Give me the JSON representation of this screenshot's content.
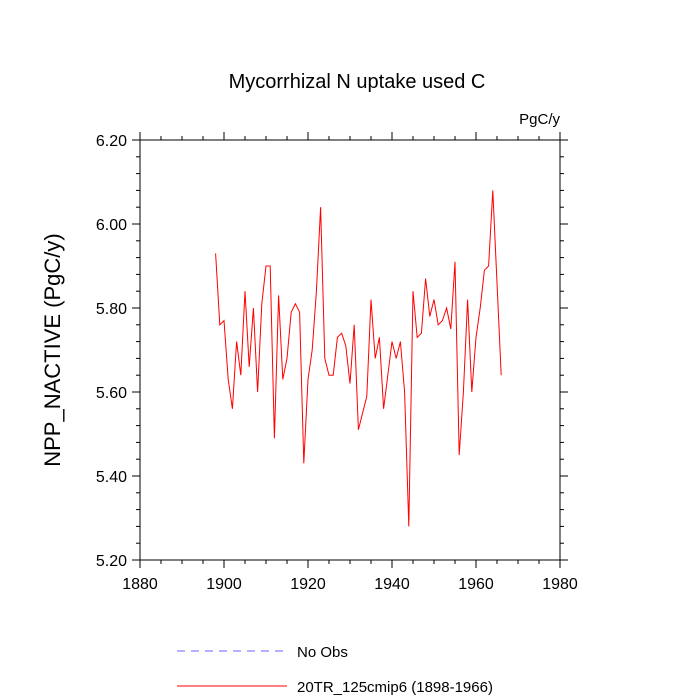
{
  "chart_data": {
    "type": "line",
    "title": "Mycorrhizal N uptake used C",
    "units": "PgC/y",
    "xlabel": "",
    "ylabel": "NPP_NACTIVE  (PgC/y)",
    "xlim": [
      1880,
      1980
    ],
    "ylim": [
      5.2,
      6.2
    ],
    "xticks": [
      1880,
      1900,
      1920,
      1940,
      1960,
      1980
    ],
    "xtick_labels": [
      "1880",
      "1900",
      "1920",
      "1940",
      "1960",
      "1980"
    ],
    "yticks": [
      5.2,
      5.4,
      5.6,
      5.8,
      6.0,
      6.2
    ],
    "ytick_labels": [
      "5.20",
      "5.40",
      "5.60",
      "5.80",
      "6.00",
      "6.20"
    ],
    "grid": false,
    "legend_position": "bottom",
    "series": [
      {
        "name": "No Obs",
        "color": "#6666ff",
        "style": "dashed",
        "values": []
      },
      {
        "name": "20TR_125cmip6 (1898-1966)",
        "color": "#ff0000",
        "style": "solid",
        "x": [
          1898,
          1899,
          1900,
          1901,
          1902,
          1903,
          1904,
          1905,
          1906,
          1907,
          1908,
          1909,
          1910,
          1911,
          1912,
          1913,
          1914,
          1915,
          1916,
          1917,
          1918,
          1919,
          1920,
          1921,
          1922,
          1923,
          1924,
          1925,
          1926,
          1927,
          1928,
          1929,
          1930,
          1931,
          1932,
          1933,
          1934,
          1935,
          1936,
          1937,
          1938,
          1939,
          1940,
          1941,
          1942,
          1943,
          1944,
          1945,
          1946,
          1947,
          1948,
          1949,
          1950,
          1951,
          1952,
          1953,
          1954,
          1955,
          1956,
          1957,
          1958,
          1959,
          1960,
          1961,
          1962,
          1963,
          1964,
          1965,
          1966
        ],
        "values": [
          5.93,
          5.76,
          5.77,
          5.63,
          5.56,
          5.72,
          5.64,
          5.84,
          5.66,
          5.8,
          5.6,
          5.81,
          5.9,
          5.9,
          5.49,
          5.83,
          5.63,
          5.68,
          5.79,
          5.81,
          5.79,
          5.43,
          5.63,
          5.7,
          5.84,
          6.04,
          5.68,
          5.64,
          5.64,
          5.73,
          5.74,
          5.71,
          5.62,
          5.76,
          5.51,
          5.55,
          5.59,
          5.82,
          5.68,
          5.73,
          5.56,
          5.64,
          5.72,
          5.68,
          5.72,
          5.6,
          5.28,
          5.84,
          5.73,
          5.74,
          5.87,
          5.78,
          5.82,
          5.76,
          5.77,
          5.8,
          5.75,
          5.91,
          5.45,
          5.6,
          5.82,
          5.6,
          5.73,
          5.8,
          5.89,
          5.9,
          6.08,
          5.86,
          5.64
        ]
      }
    ]
  }
}
